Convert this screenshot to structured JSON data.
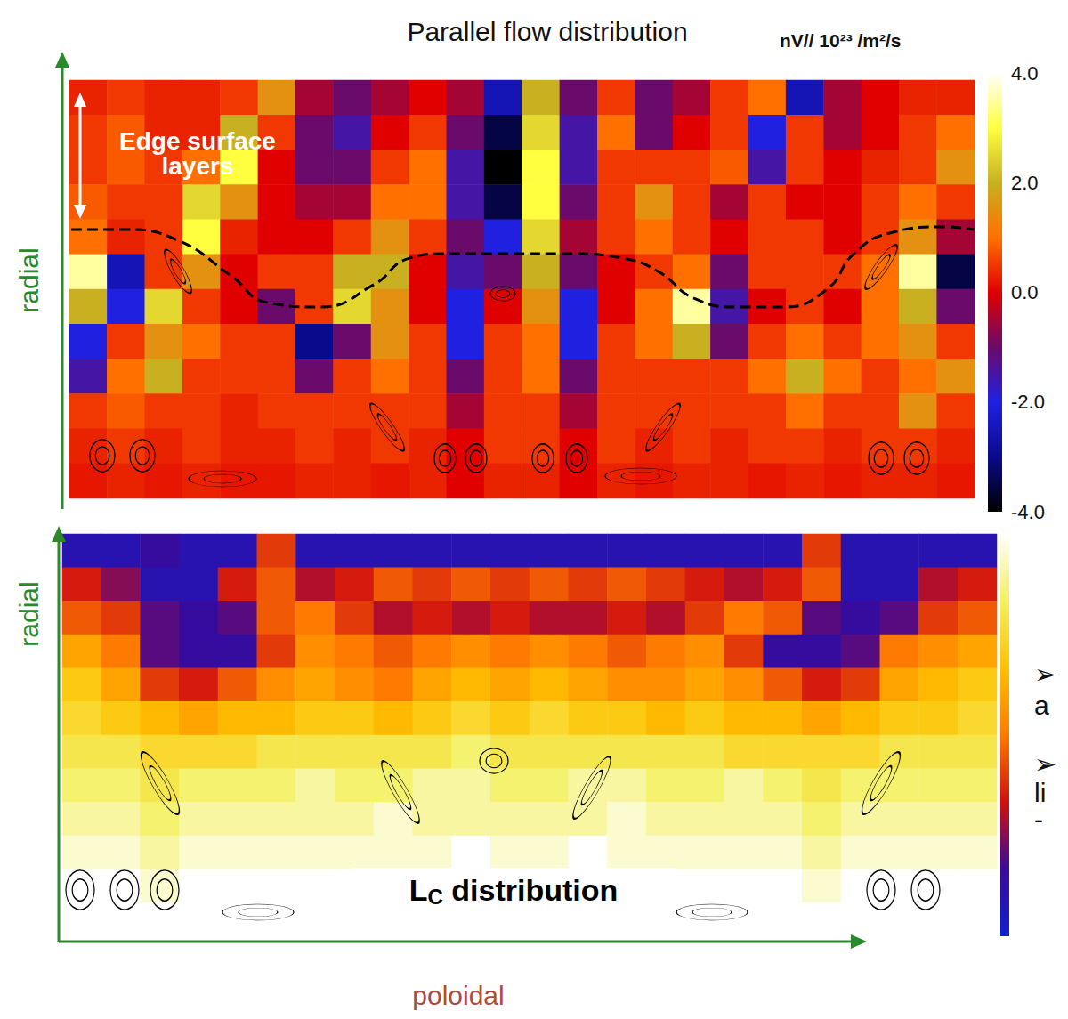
{
  "chart_data": [
    {
      "type": "heatmap",
      "title": "Parallel flow distribution",
      "ylabel": "radial",
      "colorbar_label": "nV// 10²³ /m²/s",
      "zlim": [
        -4,
        4
      ],
      "zticks": [
        {
          "value": 4,
          "label": "4.0"
        },
        {
          "value": 2,
          "label": "2.0"
        },
        {
          "value": 0,
          "label": "0.0"
        },
        {
          "value": -2,
          "label": "-2.0"
        },
        {
          "value": -4,
          "label": "-4.0"
        }
      ],
      "xlim": [
        0,
        24
      ],
      "ylim": [
        0,
        12
      ],
      "grid": false,
      "tick_labels": false,
      "annotations": [
        "Edge surface layers"
      ],
      "z": [
        [
          0.3,
          0.5,
          0.3,
          0.3,
          0.5,
          1.5,
          -0.5,
          -1,
          -0.5,
          0,
          -0.5,
          -2.5,
          2,
          -1,
          0.5,
          -1,
          -0.5,
          0.5,
          1,
          -2.5,
          -0.5,
          0,
          0.3,
          0.3
        ],
        [
          0.5,
          0.8,
          0.3,
          0.3,
          2,
          0.5,
          -1,
          -1.5,
          0,
          0.5,
          -1,
          -3.5,
          2.5,
          -1.5,
          1,
          -1,
          0,
          0.5,
          -2,
          0.5,
          -0.5,
          0,
          0.5,
          1
        ],
        [
          0.5,
          0.8,
          0.5,
          1,
          3,
          0,
          -1,
          -1,
          0.5,
          1,
          -1.5,
          -4,
          3,
          -1.5,
          0.5,
          0.5,
          0.5,
          0.8,
          -1.5,
          0.5,
          0,
          0.3,
          0.5,
          1.5
        ],
        [
          0.8,
          0.5,
          0.5,
          2.5,
          1.5,
          0,
          -0.5,
          -0.5,
          1,
          1,
          -1.5,
          -3.5,
          3,
          -1,
          0.5,
          1.5,
          0.5,
          -0.5,
          0.5,
          0,
          0,
          0.5,
          1,
          0.5
        ],
        [
          1,
          0.3,
          0.5,
          3,
          0.3,
          0,
          0,
          0.5,
          1.5,
          0.5,
          -1,
          -2,
          2.5,
          -0.5,
          0.5,
          1,
          0.5,
          0,
          0.5,
          0.5,
          0,
          0.5,
          1.5,
          -0.5
        ],
        [
          3.5,
          -2.5,
          0.5,
          1.5,
          0,
          0.5,
          0.5,
          2,
          2,
          0,
          -1.5,
          -1,
          2,
          -1,
          0,
          0.5,
          1,
          -1,
          0.5,
          0.5,
          0.5,
          1,
          3.5,
          -3.5
        ],
        [
          2,
          -2,
          2.5,
          0.5,
          0,
          -1,
          0.5,
          2.5,
          1.5,
          0,
          -2,
          0,
          1.5,
          -2,
          0,
          1,
          3.5,
          -1.5,
          0,
          0.5,
          0,
          1,
          2,
          -1
        ],
        [
          -2,
          0.5,
          1.5,
          1,
          0.5,
          0.5,
          -3,
          -1,
          1.5,
          0.5,
          -2,
          0.5,
          1,
          -2,
          0.5,
          1,
          2,
          -1,
          0.5,
          1,
          0.5,
          1,
          1.5,
          0.5
        ],
        [
          -1.5,
          1,
          2,
          0.5,
          0.5,
          0.5,
          -1,
          0.5,
          1,
          0.5,
          -1,
          0.5,
          1,
          -1,
          0.5,
          0.5,
          0.5,
          0.5,
          1,
          2,
          1,
          0.5,
          1,
          1.5
        ],
        [
          0.5,
          0.8,
          0.5,
          0.5,
          0.3,
          0.5,
          0.5,
          0.5,
          0.5,
          0.5,
          -0.5,
          0.5,
          0.5,
          -0.5,
          0.5,
          0.5,
          0.5,
          0.5,
          0.5,
          1,
          0.5,
          0.5,
          1.5,
          0.5
        ],
        [
          0.3,
          0.5,
          0.3,
          0.5,
          0.3,
          0.3,
          0.5,
          0.3,
          0.5,
          0.3,
          0,
          0.5,
          0.5,
          0,
          0.5,
          0.3,
          0.5,
          0.3,
          0.5,
          0.5,
          0.3,
          0.5,
          0.5,
          0.3
        ],
        [
          0.2,
          0.3,
          0.2,
          0.3,
          0.2,
          0.2,
          0.3,
          0.3,
          0.2,
          0.3,
          0,
          0.3,
          0.3,
          0,
          0.3,
          0.2,
          0.3,
          0.3,
          0.2,
          0.3,
          0.2,
          0.3,
          0.3,
          0.2
        ]
      ],
      "boundary": {
        "line_style": "dashed",
        "x": [
          0.05,
          1.46,
          2.88,
          4.29,
          5.24,
          6.65,
          8.07,
          9.01,
          9.95,
          11.37,
          13.25,
          14.67,
          15.61,
          16.56,
          17.74,
          18.92,
          20.09,
          20.8,
          21.75,
          23.16,
          23.99
        ],
        "y": [
          7.71,
          7.71,
          7.4,
          6.38,
          5.62,
          5.49,
          6.13,
          6.89,
          7.02,
          7.02,
          7.02,
          6.89,
          6.51,
          5.74,
          5.49,
          5.49,
          6.0,
          7.02,
          7.61,
          7.79,
          7.71
        ]
      }
    },
    {
      "type": "heatmap",
      "xlabel": "poloidal",
      "ylabel": "radial",
      "zlim": [
        0,
        1
      ],
      "grid": false,
      "tick_labels": false,
      "annotations": [
        "LC distribution"
      ],
      "z": [
        [
          0.1,
          0.1,
          0.15,
          0.1,
          0.1,
          0.4,
          0.1,
          0.1,
          0.1,
          0.1,
          0.1,
          0.1,
          0.1,
          0.1,
          0.1,
          0.1,
          0.1,
          0.1,
          0.1,
          0.4,
          0.1,
          0.1,
          0.1,
          0.1
        ],
        [
          0.35,
          0.25,
          0.1,
          0.1,
          0.35,
          0.45,
          0.3,
          0.35,
          0.45,
          0.4,
          0.45,
          0.4,
          0.45,
          0.4,
          0.45,
          0.4,
          0.35,
          0.3,
          0.35,
          0.45,
          0.1,
          0.1,
          0.3,
          0.35
        ],
        [
          0.45,
          0.4,
          0.2,
          0.15,
          0.2,
          0.45,
          0.5,
          0.4,
          0.3,
          0.35,
          0.3,
          0.35,
          0.3,
          0.3,
          0.35,
          0.3,
          0.4,
          0.5,
          0.45,
          0.2,
          0.15,
          0.2,
          0.4,
          0.45
        ],
        [
          0.6,
          0.5,
          0.2,
          0.15,
          0.15,
          0.4,
          0.55,
          0.5,
          0.45,
          0.5,
          0.55,
          0.5,
          0.55,
          0.5,
          0.45,
          0.5,
          0.55,
          0.4,
          0.15,
          0.15,
          0.2,
          0.5,
          0.55,
          0.6
        ],
        [
          0.7,
          0.6,
          0.4,
          0.35,
          0.45,
          0.55,
          0.6,
          0.55,
          0.5,
          0.6,
          0.65,
          0.6,
          0.65,
          0.6,
          0.55,
          0.55,
          0.6,
          0.55,
          0.45,
          0.35,
          0.4,
          0.6,
          0.65,
          0.7
        ],
        [
          0.75,
          0.7,
          0.65,
          0.6,
          0.65,
          0.65,
          0.7,
          0.7,
          0.65,
          0.7,
          0.75,
          0.7,
          0.75,
          0.7,
          0.7,
          0.65,
          0.7,
          0.65,
          0.65,
          0.6,
          0.65,
          0.7,
          0.7,
          0.75
        ],
        [
          0.8,
          0.8,
          0.75,
          0.75,
          0.75,
          0.8,
          0.8,
          0.8,
          0.8,
          0.8,
          0.85,
          0.8,
          0.8,
          0.8,
          0.8,
          0.8,
          0.8,
          0.75,
          0.75,
          0.75,
          0.75,
          0.8,
          0.8,
          0.8
        ],
        [
          0.85,
          0.85,
          0.8,
          0.85,
          0.85,
          0.85,
          0.9,
          0.85,
          0.85,
          0.9,
          0.9,
          0.85,
          0.85,
          0.9,
          0.9,
          0.85,
          0.85,
          0.9,
          0.85,
          0.8,
          0.85,
          0.85,
          0.85,
          0.85
        ],
        [
          0.9,
          0.9,
          0.85,
          0.9,
          0.9,
          0.9,
          0.9,
          0.9,
          0.95,
          0.9,
          0.9,
          0.9,
          0.9,
          0.9,
          0.95,
          0.9,
          0.9,
          0.9,
          0.9,
          0.85,
          0.9,
          0.9,
          0.9,
          0.9
        ],
        [
          0.95,
          0.95,
          0.9,
          0.95,
          0.95,
          0.95,
          0.95,
          0.95,
          0.95,
          0.95,
          1,
          0.95,
          0.95,
          1,
          0.95,
          0.95,
          0.95,
          0.95,
          0.95,
          0.9,
          0.95,
          0.95,
          0.95,
          0.95
        ],
        [
          1,
          1,
          0.95,
          1,
          1,
          1,
          1,
          1,
          1,
          1,
          1,
          1,
          1,
          1,
          1,
          1,
          1,
          1,
          1,
          0.95,
          1,
          1,
          1,
          1
        ],
        [
          1,
          1,
          1,
          1,
          1,
          1,
          1,
          1,
          1,
          1,
          1,
          1,
          1,
          1,
          1,
          1,
          1,
          1,
          1,
          1,
          1,
          1,
          1,
          1
        ]
      ]
    }
  ],
  "side_text": [
    "➢",
    "a",
    "➢",
    "li",
    "-"
  ]
}
